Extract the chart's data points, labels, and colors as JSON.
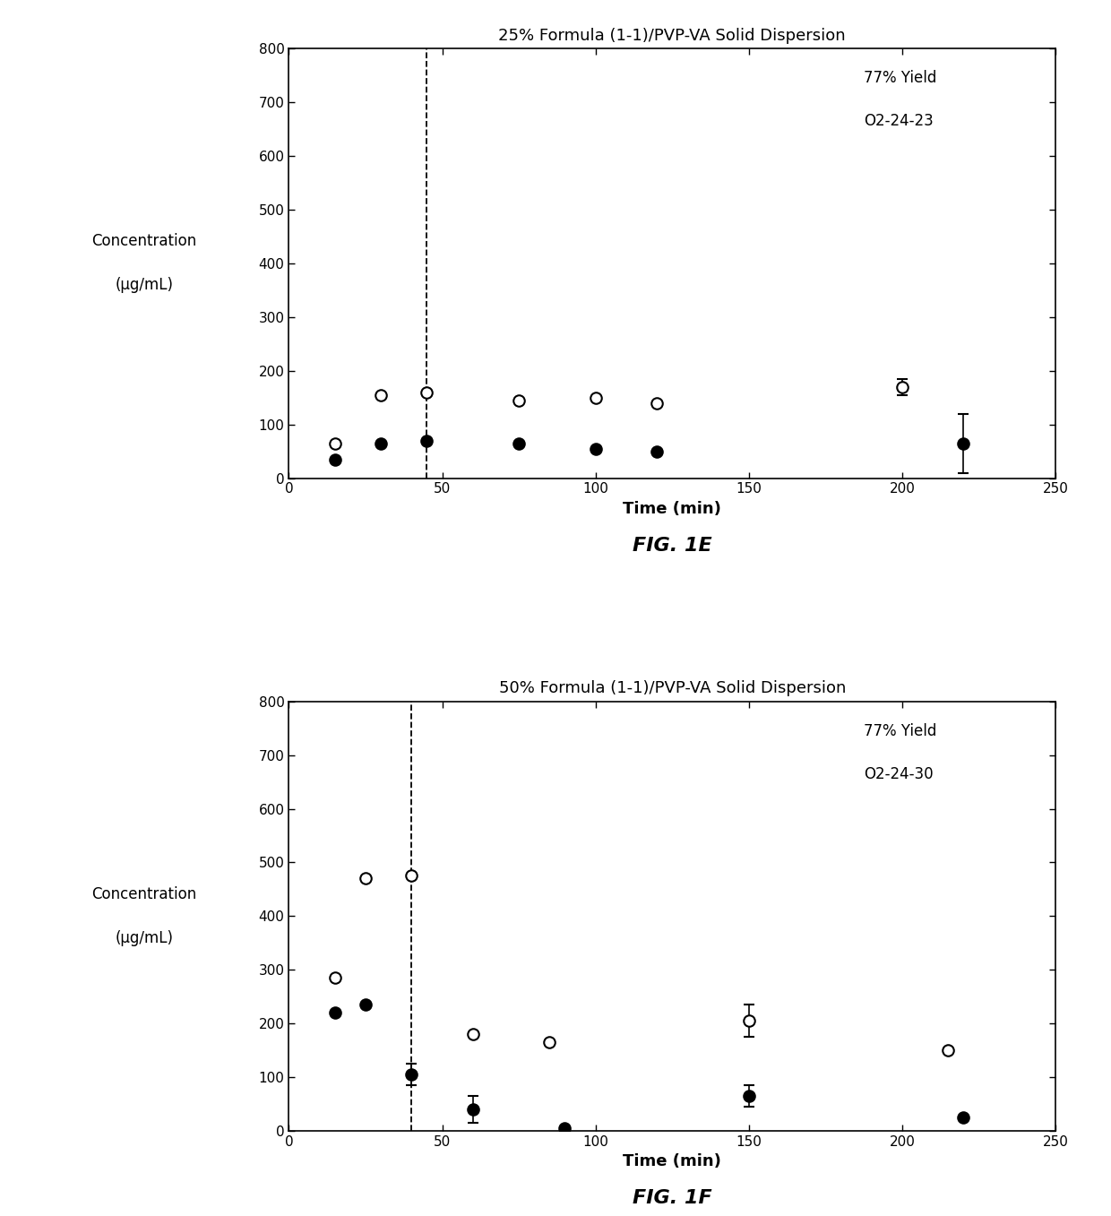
{
  "fig1e": {
    "title": "25% Formula (1-1)/PVP-VA Solid Dispersion",
    "annotation_line1": "77% Yield",
    "annotation_line2": "O2-24-23",
    "dashed_x": 45,
    "open_x": [
      15,
      30,
      45,
      75,
      100,
      120,
      200
    ],
    "open_y": [
      65,
      155,
      160,
      145,
      150,
      140,
      170
    ],
    "open_yerr": [
      0,
      0,
      0,
      0,
      0,
      0,
      15
    ],
    "filled_x": [
      15,
      30,
      45,
      75,
      100,
      120,
      220
    ],
    "filled_y": [
      35,
      65,
      70,
      65,
      55,
      50,
      65
    ],
    "filled_yerr": [
      0,
      0,
      0,
      0,
      0,
      0,
      55
    ],
    "ylim": [
      0,
      800
    ],
    "yticks": [
      0,
      100,
      200,
      300,
      400,
      500,
      600,
      700,
      800
    ],
    "xlim": [
      0,
      250
    ],
    "xticks": [
      0,
      50,
      100,
      150,
      200,
      250
    ],
    "xlabel": "Time (min)",
    "fig_label": "FIG. 1E"
  },
  "fig1f": {
    "title": "50% Formula (1-1)/PVP-VA Solid Dispersion",
    "annotation_line1": "77% Yield",
    "annotation_line2": "O2-24-30",
    "dashed_x": 40,
    "open_x": [
      15,
      25,
      40,
      60,
      85,
      150,
      215
    ],
    "open_y": [
      285,
      470,
      475,
      180,
      165,
      205,
      150
    ],
    "open_yerr": [
      0,
      0,
      0,
      0,
      0,
      30,
      0
    ],
    "filled_x": [
      15,
      25,
      40,
      60,
      90,
      150,
      220
    ],
    "filled_y": [
      220,
      235,
      105,
      40,
      5,
      65,
      25
    ],
    "filled_yerr": [
      0,
      0,
      20,
      25,
      0,
      20,
      0
    ],
    "ylim": [
      0,
      800
    ],
    "yticks": [
      0,
      100,
      200,
      300,
      400,
      500,
      600,
      700,
      800
    ],
    "xlim": [
      0,
      250
    ],
    "xticks": [
      0,
      50,
      100,
      150,
      200,
      250
    ],
    "xlabel": "Time (min)",
    "fig_label": "FIG. 1F"
  },
  "marker_size": 9,
  "linewidth": 1.2,
  "capsize": 4,
  "background": "#ffffff",
  "text_color": "#000000",
  "ylabel_line1": "Concentration",
  "ylabel_line2": "(µg/mL)"
}
